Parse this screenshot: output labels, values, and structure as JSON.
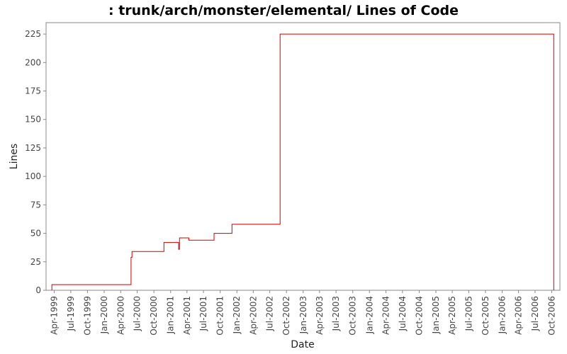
{
  "chart_data": {
    "type": "line",
    "title": ": trunk/arch/monster/elemental/ Lines of Code",
    "xlabel": "Date",
    "ylabel": "Lines",
    "ylim": [
      0,
      235
    ],
    "xlim": [
      "1999-02-15",
      "2006-11-15"
    ],
    "grid": false,
    "line_color": "#cc0000",
    "step": true,
    "y_ticks": [
      0,
      25,
      50,
      75,
      100,
      125,
      150,
      175,
      200,
      225
    ],
    "x_ticks": [
      {
        "date": "1999-04-01",
        "label": "Apr-1999"
      },
      {
        "date": "1999-07-01",
        "label": "Jul-1999"
      },
      {
        "date": "1999-10-01",
        "label": "Oct-1999"
      },
      {
        "date": "2000-01-01",
        "label": "Jan-2000"
      },
      {
        "date": "2000-04-01",
        "label": "Apr-2000"
      },
      {
        "date": "2000-07-01",
        "label": "Jul-2000"
      },
      {
        "date": "2000-10-01",
        "label": "Oct-2000"
      },
      {
        "date": "2001-01-01",
        "label": "Jan-2001"
      },
      {
        "date": "2001-04-01",
        "label": "Apr-2001"
      },
      {
        "date": "2001-07-01",
        "label": "Jul-2001"
      },
      {
        "date": "2001-10-01",
        "label": "Oct-2001"
      },
      {
        "date": "2002-01-01",
        "label": "Jan-2002"
      },
      {
        "date": "2002-04-01",
        "label": "Apr-2002"
      },
      {
        "date": "2002-07-01",
        "label": "Jul-2002"
      },
      {
        "date": "2002-10-01",
        "label": "Oct-2002"
      },
      {
        "date": "2003-01-01",
        "label": "Jan-2003"
      },
      {
        "date": "2003-04-01",
        "label": "Apr-2003"
      },
      {
        "date": "2003-07-01",
        "label": "Jul-2003"
      },
      {
        "date": "2003-10-01",
        "label": "Oct-2003"
      },
      {
        "date": "2004-01-01",
        "label": "Jan-2004"
      },
      {
        "date": "2004-04-01",
        "label": "Apr-2004"
      },
      {
        "date": "2004-07-01",
        "label": "Jul-2004"
      },
      {
        "date": "2004-10-01",
        "label": "Oct-2004"
      },
      {
        "date": "2005-01-01",
        "label": "Jan-2005"
      },
      {
        "date": "2005-04-01",
        "label": "Apr-2005"
      },
      {
        "date": "2005-07-01",
        "label": "Jul-2005"
      },
      {
        "date": "2005-10-01",
        "label": "Oct-2005"
      },
      {
        "date": "2006-01-01",
        "label": "Jan-2006"
      },
      {
        "date": "2006-04-01",
        "label": "Apr-2006"
      },
      {
        "date": "2006-07-01",
        "label": "Jul-2006"
      },
      {
        "date": "2006-10-01",
        "label": "Oct-2006"
      }
    ],
    "series": [
      {
        "points": [
          {
            "x": "1999-03-19",
            "y": 0
          },
          {
            "x": "1999-03-19",
            "y": 5
          },
          {
            "x": "2000-05-28",
            "y": 5
          },
          {
            "x": "2000-05-28",
            "y": 29
          },
          {
            "x": "2000-06-02",
            "y": 29
          },
          {
            "x": "2000-06-02",
            "y": 34
          },
          {
            "x": "2000-11-25",
            "y": 34
          },
          {
            "x": "2000-11-25",
            "y": 42
          },
          {
            "x": "2001-02-14",
            "y": 42
          },
          {
            "x": "2001-02-14",
            "y": 36
          },
          {
            "x": "2001-02-19",
            "y": 36
          },
          {
            "x": "2001-02-19",
            "y": 46
          },
          {
            "x": "2001-04-11",
            "y": 46
          },
          {
            "x": "2001-04-11",
            "y": 44
          },
          {
            "x": "2001-08-28",
            "y": 44
          },
          {
            "x": "2001-08-28",
            "y": 50
          },
          {
            "x": "2001-12-05",
            "y": 50
          },
          {
            "x": "2001-12-05",
            "y": 58
          },
          {
            "x": "2002-08-27",
            "y": 58
          },
          {
            "x": "2002-08-27",
            "y": 225
          },
          {
            "x": "2006-10-12",
            "y": 225
          },
          {
            "x": "2006-10-12",
            "y": 0
          }
        ]
      }
    ]
  }
}
